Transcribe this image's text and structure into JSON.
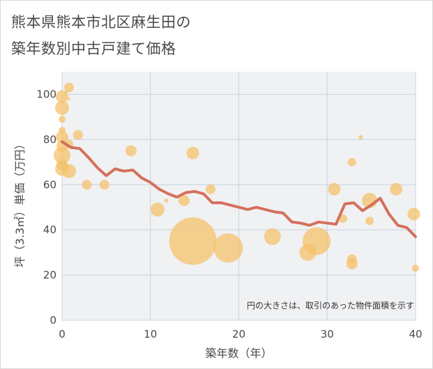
{
  "title_line1": "熊本県熊本市北区麻生田の",
  "title_line2": "築年数別中古戸建て価格",
  "colors": {
    "bubble": "#f5c26b",
    "line": "#d4705c",
    "grid": "#c8d3de",
    "plot_bg": "#f0f1f3"
  },
  "chart_data": {
    "type": "scatter",
    "xlabel": "築年数（年）",
    "ylabel": "坪（3.3㎡）単価（万円）",
    "xlim": [
      0,
      40
    ],
    "ylim": [
      0,
      110
    ],
    "xticks": [
      0,
      10,
      20,
      30,
      40
    ],
    "yticks": [
      0,
      20,
      40,
      60,
      80,
      100
    ],
    "note": "円の大きさは、取引のあった物件面積を示す",
    "scatter": [
      {
        "x": 0,
        "y": 99,
        "r": 9
      },
      {
        "x": 0,
        "y": 94,
        "r": 10
      },
      {
        "x": 0,
        "y": 89,
        "r": 5
      },
      {
        "x": 0,
        "y": 84,
        "r": 5
      },
      {
        "x": 0,
        "y": 81,
        "r": 9
      },
      {
        "x": 0,
        "y": 77,
        "r": 8
      },
      {
        "x": 0,
        "y": 73,
        "r": 12
      },
      {
        "x": 0,
        "y": 69,
        "r": 8
      },
      {
        "x": 0,
        "y": 67,
        "r": 10
      },
      {
        "x": 0.5,
        "y": 101,
        "r": 2
      },
      {
        "x": 0.8,
        "y": 98,
        "r": 2
      },
      {
        "x": 0.8,
        "y": 103,
        "r": 7
      },
      {
        "x": 0.8,
        "y": 78,
        "r": 6
      },
      {
        "x": 0.8,
        "y": 66,
        "r": 10
      },
      {
        "x": 1.8,
        "y": 82,
        "r": 7
      },
      {
        "x": 2.8,
        "y": 60,
        "r": 7
      },
      {
        "x": 4.8,
        "y": 60,
        "r": 7
      },
      {
        "x": 7.8,
        "y": 75,
        "r": 8
      },
      {
        "x": 10.8,
        "y": 49,
        "r": 10
      },
      {
        "x": 11.8,
        "y": 53,
        "r": 3
      },
      {
        "x": 13.8,
        "y": 53,
        "r": 8
      },
      {
        "x": 14.8,
        "y": 74,
        "r": 9
      },
      {
        "x": 14.8,
        "y": 35,
        "r": 34
      },
      {
        "x": 16.8,
        "y": 58,
        "r": 7
      },
      {
        "x": 18.8,
        "y": 32,
        "r": 21
      },
      {
        "x": 23.8,
        "y": 37,
        "r": 12
      },
      {
        "x": 27.8,
        "y": 30,
        "r": 12
      },
      {
        "x": 28.8,
        "y": 35,
        "r": 20
      },
      {
        "x": 30.8,
        "y": 58,
        "r": 9
      },
      {
        "x": 31.8,
        "y": 45,
        "r": 6
      },
      {
        "x": 32.8,
        "y": 70,
        "r": 6
      },
      {
        "x": 32.8,
        "y": 27,
        "r": 7
      },
      {
        "x": 32.8,
        "y": 25,
        "r": 8
      },
      {
        "x": 33.8,
        "y": 81,
        "r": 3
      },
      {
        "x": 34.8,
        "y": 53,
        "r": 11
      },
      {
        "x": 34.8,
        "y": 44,
        "r": 6
      },
      {
        "x": 37.8,
        "y": 58,
        "r": 9
      },
      {
        "x": 39.8,
        "y": 47,
        "r": 9
      },
      {
        "x": 40,
        "y": 23,
        "r": 5
      }
    ],
    "trend": {
      "x": [
        0,
        1,
        2,
        3,
        4,
        5,
        6,
        7,
        8,
        9,
        10,
        11,
        12,
        13,
        14,
        15,
        16,
        17,
        18,
        19,
        20,
        21,
        22,
        23,
        24,
        25,
        26,
        27,
        28,
        29,
        30,
        31,
        32,
        33,
        34,
        35,
        36,
        37,
        38,
        39,
        40
      ],
      "y": [
        79,
        76.5,
        76,
        72,
        67.5,
        64,
        67,
        66,
        66.5,
        63,
        61,
        58,
        56,
        54.5,
        56.5,
        57,
        56,
        52,
        52,
        51,
        50,
        49,
        50,
        49,
        48,
        47.5,
        43.5,
        43,
        42,
        43.5,
        43,
        42.5,
        51.5,
        52,
        48.5,
        51,
        54,
        47,
        42,
        41,
        37
      ]
    }
  }
}
